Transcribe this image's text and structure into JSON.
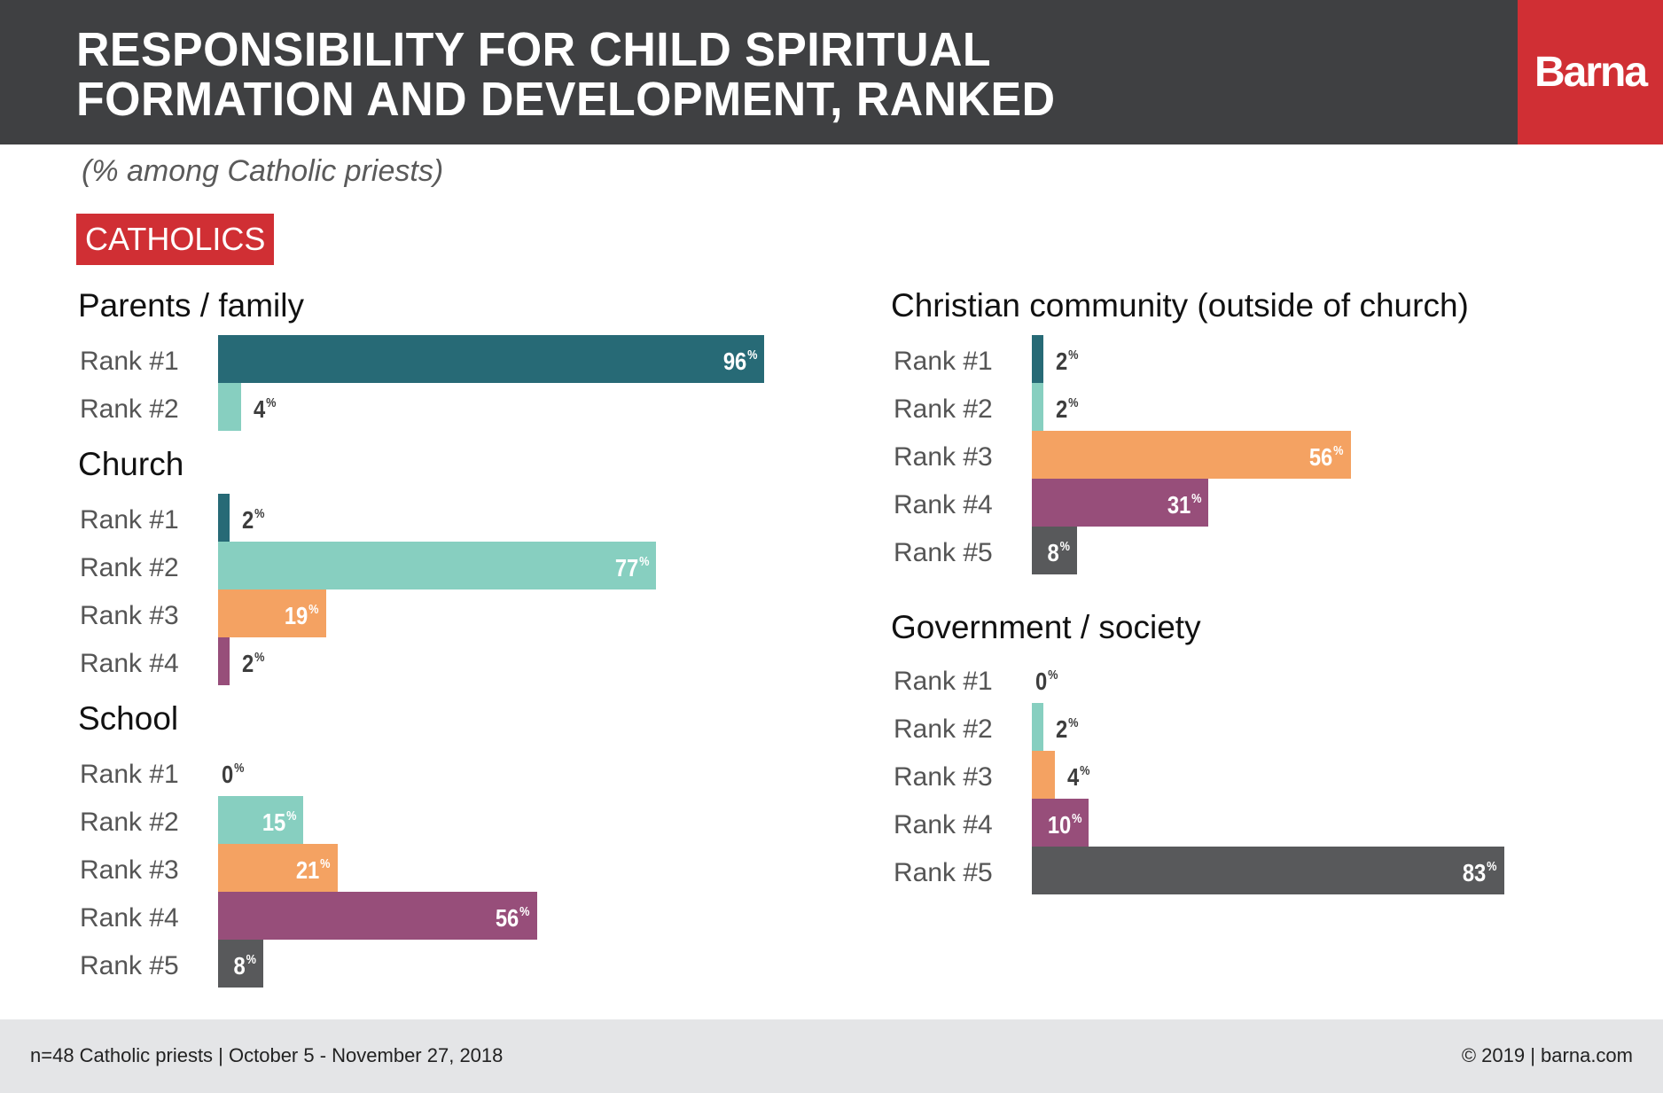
{
  "header": {
    "title_lines": [
      "RESPONSIBILITY FOR CHILD SPIRITUAL",
      "FORMATION AND DEVELOPMENT, RANKED"
    ],
    "brand": "Barna"
  },
  "subtitle": "(% among Catholic priests)",
  "badge": "CATHOLICS",
  "colors": {
    "rank1": "#276a76",
    "rank2": "#87cfc0",
    "rank3": "#f4a262",
    "rank4": "#974e7a",
    "rank5": "#58595b",
    "header_bg": "#3f4042",
    "brand_red": "#d02f34",
    "footer_bg": "#e4e5e7"
  },
  "chart_data": {
    "type": "bar",
    "orientation": "horizontal",
    "title": "Responsibility for Child Spiritual Formation and Development, Ranked",
    "subtitle": "(% among Catholic priests)",
    "segment": "CATHOLICS",
    "unit": "%",
    "xlim": [
      0,
      100
    ],
    "grid": false,
    "groups": [
      {
        "name": "Parents / family",
        "column": "left",
        "categories": [
          "Rank #1",
          "Rank #2"
        ],
        "values": [
          96,
          4
        ]
      },
      {
        "name": "Church",
        "column": "left",
        "categories": [
          "Rank #1",
          "Rank #2",
          "Rank #3",
          "Rank #4"
        ],
        "values": [
          2,
          77,
          19,
          2
        ]
      },
      {
        "name": "School",
        "column": "left",
        "categories": [
          "Rank #1",
          "Rank #2",
          "Rank #3",
          "Rank #4",
          "Rank #5"
        ],
        "values": [
          0,
          15,
          21,
          56,
          8
        ]
      },
      {
        "name": "Christian community (outside of church)",
        "column": "right",
        "categories": [
          "Rank #1",
          "Rank #2",
          "Rank #3",
          "Rank #4",
          "Rank #5"
        ],
        "values": [
          2,
          2,
          56,
          31,
          8
        ]
      },
      {
        "name": "Government / society",
        "column": "right",
        "categories": [
          "Rank #1",
          "Rank #2",
          "Rank #3",
          "Rank #4",
          "Rank #5"
        ],
        "values": [
          0,
          2,
          4,
          10,
          83
        ]
      }
    ]
  },
  "footer": {
    "source": "n=48 Catholic priests  | October 5 - November 27, 2018",
    "copyright": "© 2019 | barna.com"
  }
}
